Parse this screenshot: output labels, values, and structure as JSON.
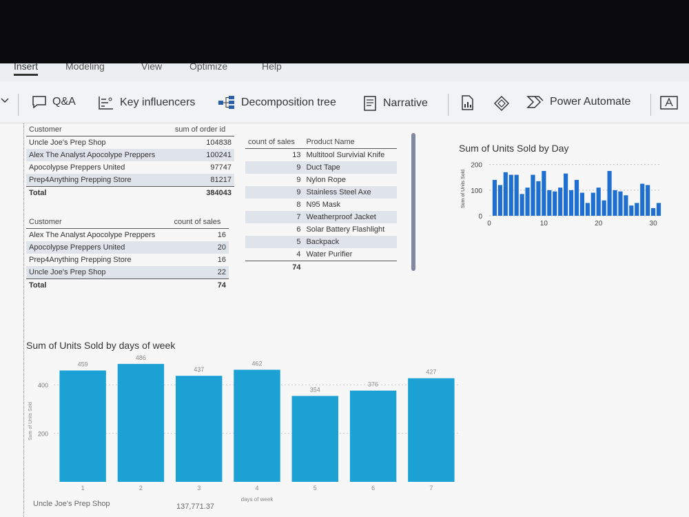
{
  "ribbon": {
    "tabs": [
      "Insert",
      "Modeling",
      "View",
      "Optimize",
      "Help"
    ],
    "buttons": [
      {
        "label": "Q&A",
        "icon": "chat-icon"
      },
      {
        "label": "Key influencers",
        "icon": "key-influencers-icon"
      },
      {
        "label": "Decomposition tree",
        "icon": "decomposition-tree-icon"
      },
      {
        "label": "Narrative",
        "icon": "narrative-icon"
      },
      {
        "label": "",
        "icon": "paginated-report-icon"
      },
      {
        "label": "",
        "icon": "power-apps-icon"
      },
      {
        "label": "Power Automate",
        "icon": "power-automate-icon"
      },
      {
        "label": "",
        "icon": "text-box-icon"
      }
    ]
  },
  "table1": {
    "headers": [
      "Customer",
      "sum of order id"
    ],
    "rows": [
      [
        "Uncle Joe's Prep Shop",
        "104838"
      ],
      [
        "Alex The Analyst Apocolype Preppers",
        "100241"
      ],
      [
        "Apocolypse Preppers United",
        "97747"
      ],
      [
        "Prep4Anything Prepping Store",
        "81217"
      ]
    ],
    "total": [
      "Total",
      "384043"
    ]
  },
  "table2": {
    "headers": [
      "Customer",
      "count of sales"
    ],
    "rows": [
      [
        "Alex The Analyst Apocolype Preppers",
        "16"
      ],
      [
        "Apocolypse Preppers United",
        "20"
      ],
      [
        "Prep4Anything Prepping Store",
        "16"
      ],
      [
        "Uncle Joe's Prep Shop",
        "22"
      ]
    ],
    "total": [
      "Total",
      "74"
    ]
  },
  "table3": {
    "headers": [
      "count of sales",
      "Product Name"
    ],
    "rows": [
      [
        "13",
        "Multitool Survivial Knife"
      ],
      [
        "9",
        "Duct Tape"
      ],
      [
        "9",
        "Nylon Rope"
      ],
      [
        "9",
        "Stainless Steel Axe"
      ],
      [
        "8",
        "N95 Mask"
      ],
      [
        "7",
        "Weatherproof Jacket"
      ],
      [
        "6",
        "Solar Battery Flashlight"
      ],
      [
        "5",
        "Backpack"
      ],
      [
        "4",
        "Water Purifier"
      ]
    ],
    "total": [
      "74",
      ""
    ]
  },
  "chart_data": [
    {
      "type": "bar",
      "title": "Sum of Units Sold by Day",
      "xlabel": "",
      "ylabel": "Sum of Units Sold",
      "x": [
        1,
        2,
        3,
        4,
        5,
        6,
        7,
        8,
        9,
        10,
        11,
        12,
        13,
        14,
        15,
        16,
        17,
        18,
        19,
        20,
        21,
        22,
        23,
        24,
        25,
        26,
        27,
        28,
        29,
        30,
        31
      ],
      "values": [
        140,
        120,
        170,
        160,
        160,
        85,
        110,
        160,
        135,
        175,
        100,
        95,
        110,
        165,
        100,
        140,
        90,
        50,
        90,
        110,
        60,
        175,
        100,
        95,
        80,
        40,
        50,
        125,
        120,
        30,
        50
      ],
      "xticks": [
        0,
        10,
        20,
        30
      ],
      "yticks": [
        0,
        100,
        200
      ],
      "xlim": [
        0,
        31.5
      ],
      "ylim": [
        0,
        210
      ],
      "color": "#1f6fd0"
    },
    {
      "type": "bar",
      "title": "Sum of Units Sold by days of week",
      "xlabel": "days of week",
      "ylabel": "Sum of Units Sold",
      "categories": [
        "1",
        "2",
        "3",
        "4",
        "5",
        "6",
        "7"
      ],
      "values": [
        459,
        486,
        437,
        462,
        354,
        376,
        427
      ],
      "yticks": [
        200,
        400
      ],
      "ylim": [
        0,
        500
      ],
      "color": "#1ba1d4"
    }
  ],
  "footer": {
    "left_label": "Uncle Joe's Prep Shop",
    "mid_value": "137,771.37"
  }
}
